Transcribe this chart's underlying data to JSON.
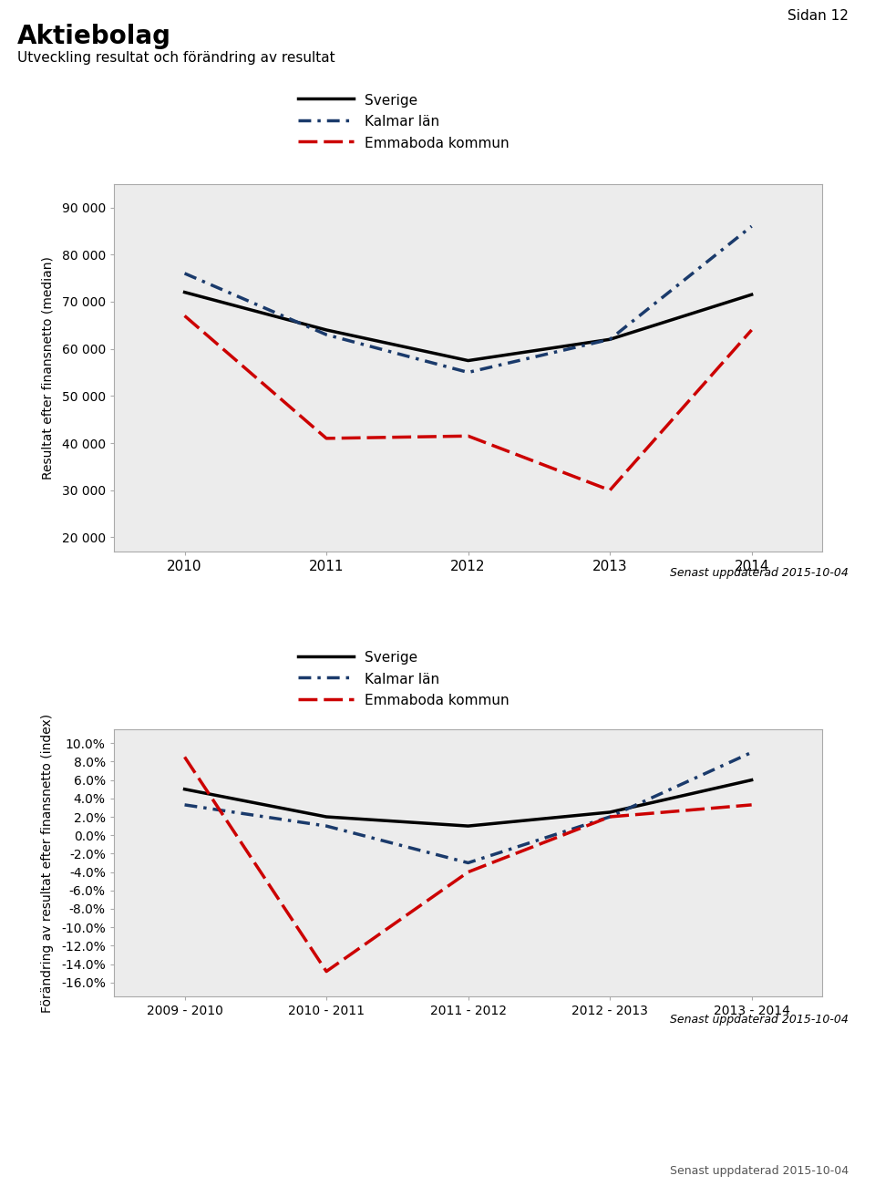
{
  "title": "Aktiebolag",
  "subtitle": "Utveckling resultat och förändring av resultat",
  "page_label": "Sidan 12",
  "footer1": "Senast uppdaterad 2015-10-04",
  "footer2": "Senast uppdaterad 2015-10-04",
  "footer3": "Senast uppdaterad 2015-10-04",
  "chart1": {
    "x": [
      2010,
      2011,
      2012,
      2013,
      2014
    ],
    "sverige": [
      72000,
      64000,
      57500,
      62000,
      71500
    ],
    "kalmar": [
      76000,
      63000,
      55000,
      62000,
      86000
    ],
    "emmaboda": [
      67000,
      41000,
      41500,
      30000,
      64000
    ],
    "ylabel": "Resultat efter finansnetto (median)",
    "ylim": [
      17000,
      95000
    ],
    "yticks": [
      20000,
      30000,
      40000,
      50000,
      60000,
      70000,
      80000,
      90000
    ],
    "ytick_labels": [
      "20 000",
      "30 000",
      "40 000",
      "50 000",
      "60 000",
      "70 000",
      "80 000",
      "90 000"
    ]
  },
  "chart2": {
    "x_labels": [
      "2009 - 2010",
      "2010 - 2011",
      "2011 - 2012",
      "2012 - 2013",
      "2013 - 2014"
    ],
    "x": [
      0,
      1,
      2,
      3,
      4
    ],
    "sverige": [
      0.05,
      0.02,
      0.01,
      0.025,
      0.06
    ],
    "kalmar": [
      0.033,
      0.01,
      -0.03,
      0.02,
      0.09
    ],
    "emmaboda": [
      0.085,
      -0.148,
      -0.04,
      0.02,
      0.033
    ],
    "ylabel": "Förändring av resultat efter finansnetto (index)",
    "ylim": [
      -0.175,
      0.115
    ],
    "yticks": [
      -0.16,
      -0.14,
      -0.12,
      -0.1,
      -0.08,
      -0.06,
      -0.04,
      -0.02,
      0.0,
      0.02,
      0.04,
      0.06,
      0.08,
      0.1
    ],
    "ytick_labels": [
      "-16.0%",
      "-14.0%",
      "-12.0%",
      "-10.0%",
      "-8.0%",
      "-6.0%",
      "-4.0%",
      "-2.0%",
      "0.0%",
      "2.0%",
      "4.0%",
      "6.0%",
      "8.0%",
      "10.0%"
    ]
  },
  "legend_labels": [
    "Sverige",
    "Kalmar län",
    "Emmaboda kommun"
  ],
  "color_sverige": "#000000",
  "color_kalmar": "#1a3a6b",
  "color_emmaboda": "#cc0000",
  "plot_bg": "#ececec"
}
